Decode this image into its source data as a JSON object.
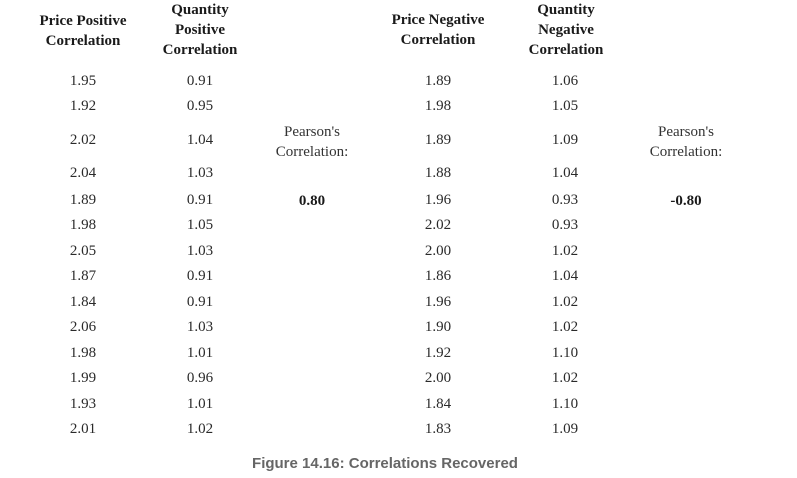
{
  "headers": {
    "price_pos": "Price Positive\nCorrelation",
    "qty_pos": "Quantity\nPositive\nCorrelation",
    "price_neg": "Price Negative\nCorrelation",
    "qty_neg": "Quantity\nNegative\nCorrelation"
  },
  "columns": {
    "price_pos": [
      "1.95",
      "1.92",
      "2.02",
      "2.04",
      "1.89",
      "1.98",
      "2.05",
      "1.87",
      "1.84",
      "2.06",
      "1.98",
      "1.99",
      "1.93",
      "2.01"
    ],
    "qty_pos": [
      "0.91",
      "0.95",
      "1.04",
      "1.03",
      "0.91",
      "1.05",
      "1.03",
      "0.91",
      "0.91",
      "1.03",
      "1.01",
      "0.96",
      "1.01",
      "1.02"
    ],
    "price_neg": [
      "1.89",
      "1.98",
      "1.89",
      "1.88",
      "1.96",
      "2.02",
      "2.00",
      "1.86",
      "1.96",
      "1.90",
      "1.92",
      "2.00",
      "1.84",
      "1.83"
    ],
    "qty_neg": [
      "1.06",
      "1.05",
      "1.09",
      "1.04",
      "0.93",
      "0.93",
      "1.02",
      "1.04",
      "1.02",
      "1.02",
      "1.10",
      "1.02",
      "1.10",
      "1.09"
    ]
  },
  "pearson_positive": {
    "label": "Pearson's\nCorrelation:",
    "value": "0.80"
  },
  "pearson_negative": {
    "label": "Pearson's\nCorrelation:",
    "value": "-0.80"
  },
  "caption": "Figure 14.16: Correlations Recovered"
}
